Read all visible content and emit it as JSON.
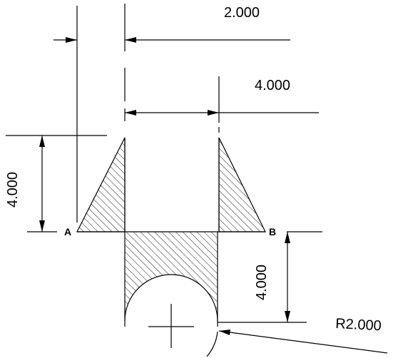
{
  "dimensions": {
    "top_width": "2.000",
    "mid_width": "4.000",
    "left_height": "4.000",
    "right_height": "4.000",
    "radius": "R2.000"
  },
  "points": {
    "a": "A",
    "b": "B"
  },
  "colors": {
    "line": "#000000",
    "background": "#ffffff"
  }
}
